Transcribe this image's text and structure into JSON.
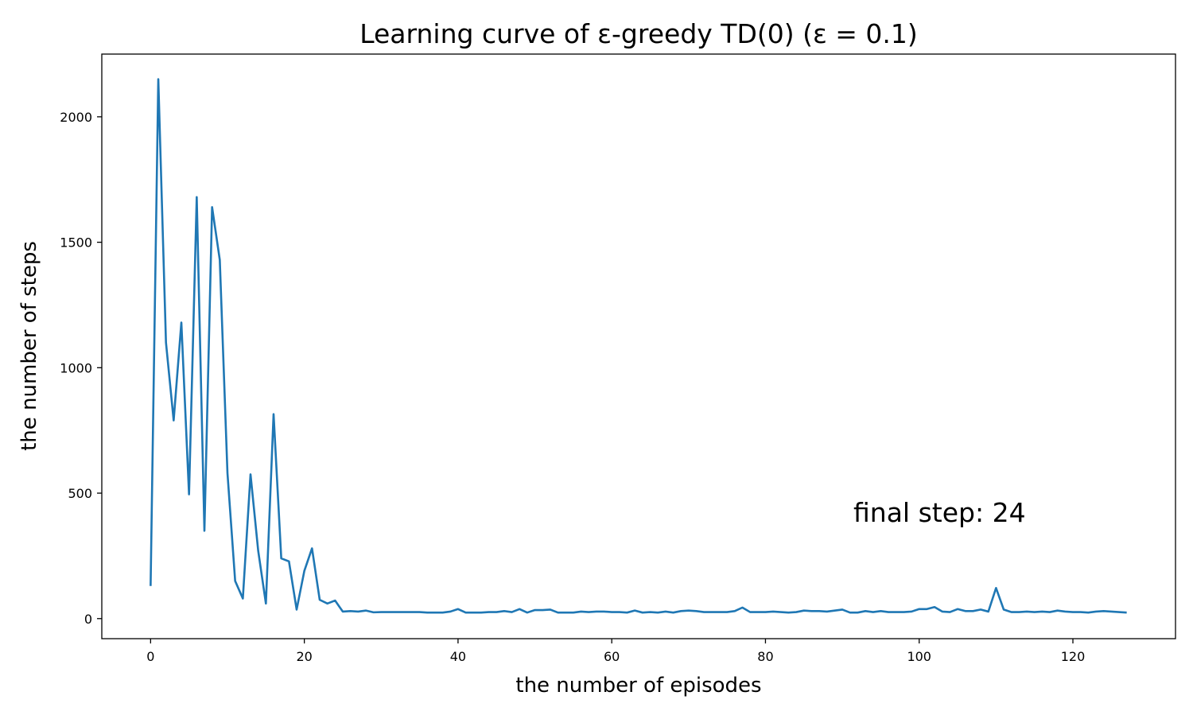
{
  "chart_data": {
    "type": "line",
    "title": "Learning curve of ε-greedy TD(0) (ε = 0.1)",
    "xlabel": "the number of episodes",
    "ylabel": "the number of steps",
    "xlim": [
      -6.35,
      133.35
    ],
    "ylim": [
      -80,
      2250
    ],
    "xticks": [
      0,
      20,
      40,
      60,
      80,
      100,
      120
    ],
    "yticks": [
      0,
      500,
      1000,
      1500,
      2000
    ],
    "grid": false,
    "line_color": "#1f77b4",
    "annotation": "final step: 24",
    "series": [
      {
        "x": [
          0,
          1,
          2,
          3,
          4,
          5,
          6,
          7,
          8,
          9,
          10,
          11,
          12,
          13,
          14,
          15,
          16,
          17,
          18,
          19,
          20,
          21,
          22,
          23,
          24,
          25,
          26,
          27,
          28,
          29,
          30,
          31,
          32,
          33,
          34,
          35,
          36,
          37,
          38,
          39,
          40,
          41,
          42,
          43,
          44,
          45,
          46,
          47,
          48,
          49,
          50,
          51,
          52,
          53,
          54,
          55,
          56,
          57,
          58,
          59,
          60,
          61,
          62,
          63,
          64,
          65,
          66,
          67,
          68,
          69,
          70,
          71,
          72,
          73,
          74,
          75,
          76,
          77,
          78,
          79,
          80,
          81,
          82,
          83,
          84,
          85,
          86,
          87,
          88,
          89,
          90,
          91,
          92,
          93,
          94,
          95,
          96,
          97,
          98,
          99,
          100,
          101,
          102,
          103,
          104,
          105,
          106,
          107,
          108,
          109,
          110,
          111,
          112,
          113,
          114,
          115,
          116,
          117,
          118,
          119,
          120,
          121,
          122,
          123,
          124,
          125,
          126,
          127
        ],
        "values": [
          130,
          2150,
          1100,
          790,
          1180,
          495,
          1680,
          350,
          1640,
          1430,
          580,
          150,
          80,
          575,
          270,
          60,
          815,
          240,
          228,
          36,
          190,
          280,
          75,
          60,
          72,
          28,
          30,
          28,
          32,
          25,
          26,
          26,
          26,
          26,
          26,
          26,
          24,
          24,
          24,
          28,
          38,
          24,
          24,
          24,
          26,
          26,
          30,
          26,
          38,
          24,
          34,
          34,
          36,
          24,
          24,
          24,
          28,
          26,
          28,
          28,
          26,
          26,
          24,
          32,
          24,
          26,
          24,
          28,
          24,
          30,
          32,
          30,
          26,
          26,
          26,
          26,
          30,
          44,
          26,
          26,
          26,
          28,
          26,
          24,
          26,
          32,
          30,
          30,
          28,
          32,
          36,
          24,
          24,
          30,
          26,
          30,
          26,
          26,
          26,
          28,
          38,
          38,
          46,
          28,
          26,
          38,
          30,
          30,
          36,
          28,
          122,
          36,
          26,
          26,
          28,
          26,
          28,
          26,
          32,
          28,
          26,
          26,
          24,
          28,
          30,
          28,
          26,
          24
        ]
      }
    ]
  }
}
